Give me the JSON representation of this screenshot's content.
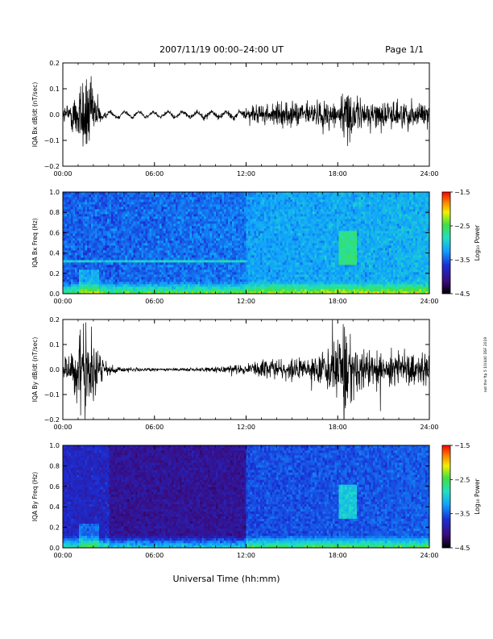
{
  "header": {
    "title": "2007/11/19  00:00–24:00 UT",
    "page": "Page 1/1"
  },
  "footer": {
    "xlabel": "Universal Time (hh:mm)"
  },
  "side_note": "not the ftp 5 10/440 DSF 2019",
  "colors": {
    "trace": "#000000",
    "colorbar_stops": [
      "#000000",
      "#3b0a7a",
      "#1a2fd6",
      "#10a0ff",
      "#20e0c0",
      "#40e040",
      "#f0f000",
      "#ff8000",
      "#ff0000"
    ]
  },
  "chart_data": [
    {
      "type": "line",
      "title": "",
      "ylabel": "IQA Bx dB/dt (nT/sec)",
      "xlabel": "",
      "xlim": [
        0,
        24
      ],
      "ylim": [
        -0.2,
        0.2
      ],
      "x_ticks": [
        "00:00",
        "06:00",
        "12:00",
        "18:00",
        "24:00"
      ],
      "y_ticks": [
        "0.2",
        "0.1",
        "0.0",
        "−0.1",
        "−0.2"
      ],
      "series": [
        {
          "x": [
            0,
            0.5,
            1.0,
            1.5,
            2.0,
            2.5,
            3.0,
            4.0,
            5.0,
            6.0,
            7.0,
            8.0,
            9.0,
            10.0,
            11.0,
            12.0,
            13.0,
            14.0,
            15.0,
            16.0,
            17.0,
            18.0,
            18.5,
            19.0,
            20.0,
            21.0,
            22.0,
            23.0,
            24.0
          ],
          "amp": [
            0.03,
            0.05,
            0.12,
            0.18,
            0.1,
            0.04,
            0.02,
            0.02,
            0.015,
            0.015,
            0.015,
            0.02,
            0.02,
            0.025,
            0.025,
            0.03,
            0.035,
            0.04,
            0.045,
            0.05,
            0.05,
            0.06,
            0.1,
            0.07,
            0.05,
            0.05,
            0.05,
            0.05,
            0.05
          ]
        }
      ]
    },
    {
      "type": "heatmap",
      "title": "",
      "ylabel": "IQA Bx Freq (Hz)",
      "colorbar_label": "Log₁₀ Power",
      "colorbar_ticks": [
        "−1.5",
        "−2.5",
        "−3.5",
        "−4.5"
      ],
      "colorbar_range": [
        -4.5,
        -1.5
      ],
      "xlim": [
        0,
        24
      ],
      "ylim": [
        0,
        1
      ],
      "x_ticks": [
        "00:00",
        "06:00",
        "12:00",
        "18:00",
        "24:00"
      ],
      "y_ticks": [
        "1.0",
        "0.8",
        "0.6",
        "0.4",
        "0.2",
        "0.0"
      ]
    },
    {
      "type": "line",
      "title": "",
      "ylabel": "IQA By dB/dt (nT/sec)",
      "xlabel": "",
      "xlim": [
        0,
        24
      ],
      "ylim": [
        -0.2,
        0.2
      ],
      "x_ticks": [
        "00:00",
        "06:00",
        "12:00",
        "18:00",
        "24:00"
      ],
      "y_ticks": [
        "0.2",
        "0.1",
        "0.0",
        "−0.1",
        "−0.2"
      ],
      "series": [
        {
          "x": [
            0,
            0.5,
            1.0,
            1.5,
            2.0,
            2.5,
            3.0,
            4.0,
            5.0,
            6.0,
            7.0,
            8.0,
            9.0,
            10.0,
            11.0,
            12.0,
            13.0,
            14.0,
            15.0,
            16.0,
            17.0,
            18.0,
            18.5,
            19.0,
            20.0,
            21.0,
            22.0,
            23.0,
            24.0
          ],
          "amp": [
            0.04,
            0.06,
            0.15,
            0.2,
            0.12,
            0.05,
            0.02,
            0.01,
            0.008,
            0.006,
            0.005,
            0.006,
            0.008,
            0.012,
            0.015,
            0.02,
            0.03,
            0.035,
            0.04,
            0.05,
            0.07,
            0.12,
            0.18,
            0.1,
            0.08,
            0.08,
            0.07,
            0.06,
            0.06
          ]
        }
      ]
    },
    {
      "type": "heatmap",
      "title": "",
      "ylabel": "IQA By Freq (Hz)",
      "colorbar_label": "Log₁₀ Power",
      "colorbar_ticks": [
        "−1.5",
        "−2.5",
        "−3.5",
        "−4.5"
      ],
      "colorbar_range": [
        -4.5,
        -1.5
      ],
      "xlim": [
        0,
        24
      ],
      "ylim": [
        0,
        1
      ],
      "x_ticks": [
        "00:00",
        "06:00",
        "12:00",
        "18:00",
        "24:00"
      ],
      "y_ticks": [
        "1.0",
        "0.8",
        "0.6",
        "0.4",
        "0.2",
        "0.0"
      ]
    }
  ]
}
